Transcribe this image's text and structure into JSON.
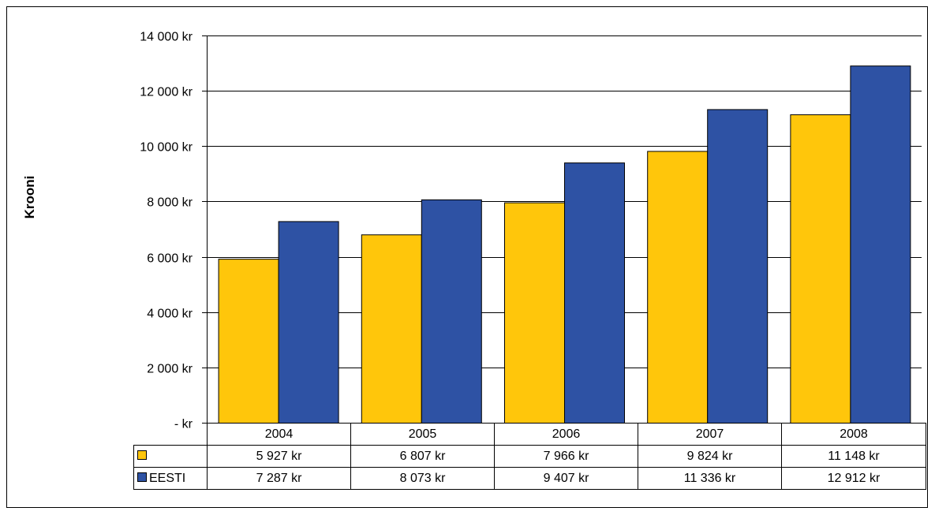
{
  "chart_data": {
    "type": "bar",
    "xlabel": "",
    "ylabel": "Krooni",
    "categories": [
      "2004",
      "2005",
      "2006",
      "2007",
      "2008"
    ],
    "ylim": [
      0,
      14000
    ],
    "yticks": [
      {
        "value": 0,
        "label": "- kr"
      },
      {
        "value": 2000,
        "label": "2 000 kr"
      },
      {
        "value": 4000,
        "label": "4 000 kr"
      },
      {
        "value": 6000,
        "label": "6 000 kr"
      },
      {
        "value": 8000,
        "label": "8 000 kr"
      },
      {
        "value": 10000,
        "label": "10 000 kr"
      },
      {
        "value": 12000,
        "label": "12 000 kr"
      },
      {
        "value": 14000,
        "label": "14 000 kr"
      }
    ],
    "grid": true,
    "legend": "data-table-rows",
    "series": [
      {
        "name": "",
        "color": "#FFC60B",
        "values": [
          5927,
          6807,
          7966,
          9824,
          11148
        ],
        "labels": [
          "5 927 kr",
          "6 807 kr",
          "7 966 kr",
          "9 824 kr",
          "11 148 kr"
        ]
      },
      {
        "name": "EESTI",
        "color": "#2E52A4",
        "values": [
          7287,
          8073,
          9407,
          11336,
          12912
        ],
        "labels": [
          "7 287 kr",
          "8 073 kr",
          "9 407 kr",
          "11 336 kr",
          "12 912 kr"
        ]
      }
    ]
  }
}
